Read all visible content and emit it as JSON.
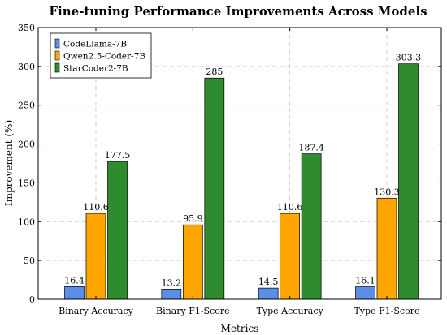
{
  "chart_data": {
    "type": "bar",
    "title": "Fine-tuning Performance Improvements Across Models",
    "xlabel": "Metrics",
    "ylabel": "Improvement (%)",
    "ylim": [
      0,
      350
    ],
    "yticks": [
      0,
      50,
      100,
      150,
      200,
      250,
      300,
      350
    ],
    "grid": true,
    "legend_position": "top-left",
    "categories": [
      "Binary Accuracy",
      "Binary F1-Score",
      "Type Accuracy",
      "Type F1-Score"
    ],
    "series": [
      {
        "name": "CodeLlama-7B",
        "color": "#5b8ee6",
        "values": [
          16.4,
          13.2,
          14.5,
          16.1
        ],
        "labels": [
          "16.4",
          "13.2",
          "14.5",
          "16.1"
        ]
      },
      {
        "name": "Qwen2.5-Coder-7B",
        "color": "#ffa500",
        "values": [
          110.6,
          95.9,
          110.6,
          130.3
        ],
        "labels": [
          "110.6",
          "95.9",
          "110.6",
          "130.3"
        ]
      },
      {
        "name": "StarCoder2-7B",
        "color": "#2e8b2e",
        "values": [
          177.5,
          285,
          187.4,
          303.3
        ],
        "labels": [
          "177.5",
          "285",
          "187.4",
          "303.3"
        ]
      }
    ]
  }
}
